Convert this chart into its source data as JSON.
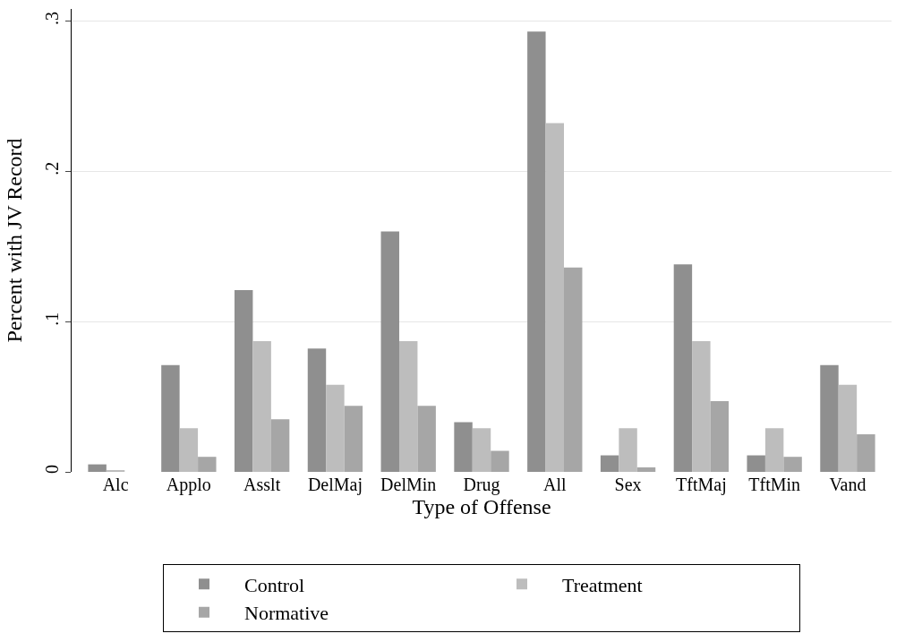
{
  "chart_data": {
    "type": "bar",
    "xlabel": "Type of Offense",
    "ylabel": "Percent with JV Record",
    "categories": [
      "Alc",
      "Applo",
      "Asslt",
      "DelMaj",
      "DelMin",
      "Drug",
      "All",
      "Sex",
      "TftMaj",
      "TftMin",
      "Vand"
    ],
    "series": [
      {
        "name": "Control",
        "color": "#8f8f8f",
        "values": [
          0.005,
          0.071,
          0.121,
          0.082,
          0.16,
          0.033,
          0.293,
          0.011,
          0.138,
          0.011,
          0.071
        ]
      },
      {
        "name": "Treatment",
        "color": "#bdbdbd",
        "values": [
          0.001,
          0.029,
          0.087,
          0.058,
          0.087,
          0.029,
          0.232,
          0.029,
          0.087,
          0.029,
          0.058
        ]
      },
      {
        "name": "Normative",
        "color": "#a6a6a6",
        "values": [
          0,
          0.01,
          0.035,
          0.044,
          0.044,
          0.014,
          0.136,
          0.003,
          0.047,
          0.01,
          0.025
        ]
      }
    ],
    "ylim": [
      0,
      0.308
    ],
    "yticks": [
      0,
      {
        "value": 0.1,
        "label": ".1"
      },
      {
        "value": 0.2,
        "label": ".2"
      },
      {
        "value": 0.3,
        "label": ".3"
      }
    ],
    "grid": "y",
    "legend": "bottom"
  }
}
